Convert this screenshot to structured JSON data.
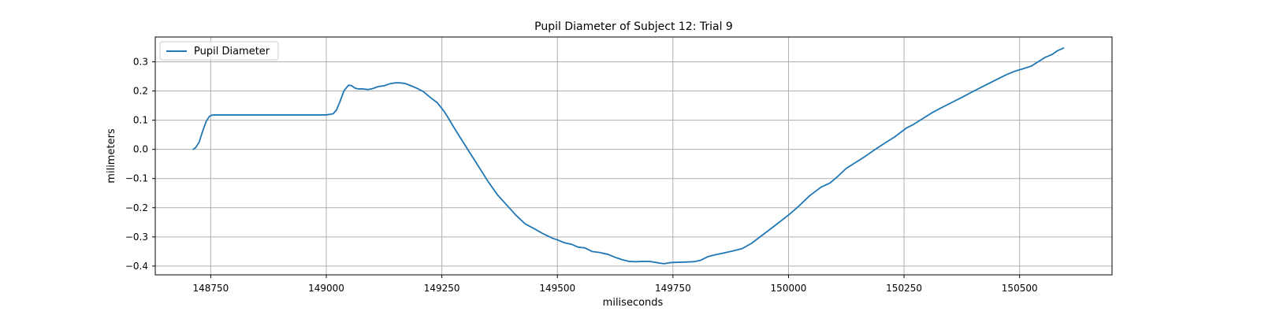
{
  "chart_data": {
    "type": "line",
    "title": "Pupil Diameter of Subject 12: Trial 9",
    "xlabel": "miliseconds",
    "ylabel": "milimeters",
    "xlim": [
      148630,
      150700
    ],
    "ylim": [
      -0.43,
      0.385
    ],
    "xticks": [
      148750,
      149000,
      149250,
      149500,
      149750,
      150000,
      150250,
      150500
    ],
    "yticks": [
      -0.4,
      -0.3,
      -0.2,
      -0.1,
      0.0,
      0.1,
      0.2,
      0.3
    ],
    "ytick_labels": [
      "−0.4",
      "−0.3",
      "−0.2",
      "−0.1",
      "0.0",
      "0.1",
      "0.2",
      "0.3"
    ],
    "grid": true,
    "legend_position": "top-left",
    "line_color": "#1f77b4",
    "series": [
      {
        "name": "Pupil Diameter",
        "x": [
          148712,
          148718,
          148725,
          148732,
          148740,
          148747,
          148752,
          148758,
          148780,
          148850,
          148950,
          149000,
          149015,
          149022,
          149030,
          149038,
          149048,
          149055,
          149062,
          149070,
          149080,
          149090,
          149100,
          149112,
          149125,
          149138,
          149150,
          149158,
          149170,
          149180,
          149195,
          149210,
          149225,
          149240,
          149255,
          149265,
          149275,
          149290,
          149310,
          149330,
          149350,
          149370,
          149390,
          149410,
          149430,
          149450,
          149470,
          149490,
          149500,
          149515,
          149530,
          149545,
          149560,
          149575,
          149590,
          149610,
          149625,
          149640,
          149655,
          149670,
          149685,
          149700,
          149715,
          149730,
          149745,
          149760,
          149780,
          149795,
          149810,
          149825,
          149840,
          149860,
          149880,
          149900,
          149920,
          149945,
          149970,
          150000,
          150020,
          150045,
          150070,
          150090,
          150105,
          150125,
          150145,
          150165,
          150185,
          150205,
          150230,
          150255,
          150270,
          150290,
          150310,
          150330,
          150355,
          150375,
          150395,
          150420,
          150445,
          150470,
          150490,
          150505,
          150525,
          150540,
          150555,
          150570,
          150582,
          150595
        ],
        "y": [
          0.0,
          0.007,
          0.025,
          0.06,
          0.095,
          0.113,
          0.117,
          0.118,
          0.118,
          0.118,
          0.118,
          0.118,
          0.122,
          0.135,
          0.165,
          0.2,
          0.22,
          0.218,
          0.21,
          0.207,
          0.207,
          0.205,
          0.208,
          0.215,
          0.218,
          0.225,
          0.228,
          0.228,
          0.226,
          0.22,
          0.21,
          0.198,
          0.178,
          0.16,
          0.13,
          0.105,
          0.078,
          0.04,
          -0.01,
          -0.06,
          -0.11,
          -0.155,
          -0.19,
          -0.225,
          -0.255,
          -0.272,
          -0.29,
          -0.305,
          -0.31,
          -0.32,
          -0.325,
          -0.335,
          -0.338,
          -0.35,
          -0.353,
          -0.36,
          -0.37,
          -0.378,
          -0.384,
          -0.385,
          -0.384,
          -0.384,
          -0.388,
          -0.392,
          -0.388,
          -0.387,
          -0.386,
          -0.385,
          -0.38,
          -0.368,
          -0.362,
          -0.355,
          -0.348,
          -0.34,
          -0.322,
          -0.292,
          -0.262,
          -0.225,
          -0.198,
          -0.16,
          -0.13,
          -0.115,
          -0.095,
          -0.065,
          -0.045,
          -0.025,
          -0.003,
          0.018,
          0.043,
          0.073,
          0.085,
          0.105,
          0.125,
          0.142,
          0.162,
          0.178,
          0.195,
          0.215,
          0.235,
          0.255,
          0.268,
          0.275,
          0.285,
          0.3,
          0.315,
          0.325,
          0.338,
          0.347
        ]
      }
    ]
  }
}
